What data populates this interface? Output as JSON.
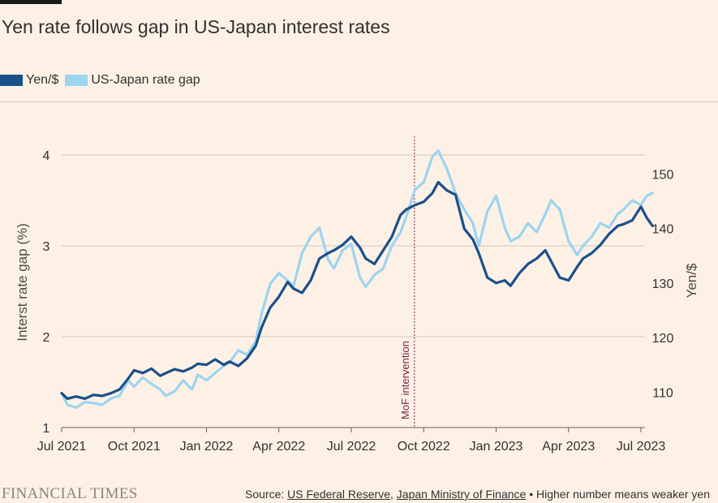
{
  "title": "Yen rate follows gap in US-Japan interest rates",
  "legend": [
    {
      "label": "Yen/$",
      "color": "#1b4f8a"
    },
    {
      "label": "US-Japan rate gap",
      "color": "#9dd4ef"
    }
  ],
  "footer": {
    "logo": "FINANCIAL TIMES",
    "source_prefix": "Source: ",
    "source_1": "US Federal Reserve",
    "source_sep": ", ",
    "source_2": "Japan Ministry of Finance",
    "note": " • Higher number means weaker yen"
  },
  "chart_data": {
    "type": "line",
    "title": "Yen rate follows gap in US-Japan interest rates",
    "x_ticks": [
      "Jul 2021",
      "Oct 2021",
      "Jan 2022",
      "Apr 2022",
      "Jul 2022",
      "Oct 2022",
      "Jan 2023",
      "Apr 2023",
      "Jul 2023"
    ],
    "y_left": {
      "label": "Interst rate gap (%)",
      "range": [
        1,
        4
      ],
      "ticks": [
        "1",
        "2",
        "3",
        "4"
      ]
    },
    "y_right": {
      "label": "Yen/$",
      "range": [
        103.5,
        153.5
      ],
      "ticks": [
        "110",
        "120",
        "130",
        "140",
        "150"
      ]
    },
    "grid": true,
    "legend_position": "top-left",
    "annotation": {
      "label": "MoF intervention",
      "x": 2022.718
    },
    "series": [
      {
        "name": "Yen/$",
        "axis": "right",
        "color": "#1b4f8a",
        "x": [
          2021.5,
          2021.52,
          2021.55,
          2021.58,
          2021.61,
          2021.64,
          2021.67,
          2021.7,
          2021.73,
          2021.75,
          2021.78,
          2021.81,
          2021.84,
          2021.86,
          2021.89,
          2021.92,
          2021.95,
          2021.97,
          2022.0,
          2022.03,
          2022.06,
          2022.08,
          2022.11,
          2022.14,
          2022.17,
          2022.19,
          2022.22,
          2022.25,
          2022.28,
          2022.3,
          2022.33,
          2022.36,
          2022.39,
          2022.42,
          2022.44,
          2022.47,
          2022.5,
          2022.53,
          2022.55,
          2022.58,
          2022.61,
          2022.64,
          2022.67,
          2022.69,
          2022.72,
          2022.75,
          2022.78,
          2022.8,
          2022.83,
          2022.86,
          2022.89,
          2022.92,
          2022.94,
          2022.97,
          2023.0,
          2023.03,
          2023.05,
          2023.08,
          2023.11,
          2023.14,
          2023.17,
          2023.19,
          2023.22,
          2023.25,
          2023.28,
          2023.3,
          2023.33,
          2023.36,
          2023.39,
          2023.42,
          2023.44,
          2023.47,
          2023.5,
          2023.52,
          2023.54
        ],
        "values": [
          109.8,
          108.8,
          109.2,
          108.8,
          109.5,
          109.3,
          109.8,
          110.5,
          112.5,
          114.0,
          113.5,
          114.3,
          113.0,
          113.5,
          114.2,
          113.8,
          114.5,
          115.2,
          115.0,
          116.0,
          115.0,
          115.6,
          114.8,
          116.2,
          118.5,
          121.8,
          125.5,
          127.5,
          130.2,
          129.0,
          128.2,
          130.5,
          134.5,
          135.5,
          136.0,
          137.0,
          138.5,
          136.5,
          134.5,
          133.5,
          136.0,
          138.5,
          142.5,
          143.5,
          144.3,
          144.9,
          146.5,
          148.5,
          147.0,
          146.2,
          140.0,
          138.0,
          135.5,
          131.0,
          130.0,
          130.5,
          129.5,
          131.8,
          133.5,
          134.5,
          136.0,
          134.0,
          131.0,
          130.5,
          133.0,
          134.5,
          135.5,
          137.0,
          139.0,
          140.5,
          140.8,
          141.5,
          144.0,
          142.0,
          140.5
        ]
      },
      {
        "name": "US-Japan rate gap",
        "axis": "left",
        "color": "#9dd4ef",
        "x": [
          2021.5,
          2021.52,
          2021.55,
          2021.58,
          2021.61,
          2021.64,
          2021.67,
          2021.7,
          2021.73,
          2021.75,
          2021.78,
          2021.81,
          2021.84,
          2021.86,
          2021.89,
          2021.92,
          2021.95,
          2021.97,
          2022.0,
          2022.03,
          2022.06,
          2022.08,
          2022.11,
          2022.14,
          2022.17,
          2022.19,
          2022.22,
          2022.25,
          2022.28,
          2022.3,
          2022.33,
          2022.36,
          2022.39,
          2022.42,
          2022.44,
          2022.47,
          2022.5,
          2022.53,
          2022.55,
          2022.58,
          2022.61,
          2022.64,
          2022.67,
          2022.69,
          2022.72,
          2022.75,
          2022.78,
          2022.8,
          2022.83,
          2022.86,
          2022.89,
          2022.92,
          2022.94,
          2022.97,
          2023.0,
          2023.03,
          2023.05,
          2023.08,
          2023.11,
          2023.14,
          2023.17,
          2023.19,
          2023.22,
          2023.25,
          2023.28,
          2023.3,
          2023.33,
          2023.36,
          2023.39,
          2023.42,
          2023.44,
          2023.47,
          2023.5,
          2023.52,
          2023.54
        ],
        "values": [
          1.38,
          1.25,
          1.22,
          1.28,
          1.27,
          1.25,
          1.32,
          1.35,
          1.52,
          1.45,
          1.55,
          1.48,
          1.42,
          1.35,
          1.4,
          1.52,
          1.42,
          1.58,
          1.52,
          1.6,
          1.68,
          1.72,
          1.85,
          1.8,
          1.95,
          2.25,
          2.58,
          2.7,
          2.62,
          2.55,
          2.92,
          3.1,
          3.2,
          2.85,
          2.75,
          2.95,
          3.02,
          2.65,
          2.55,
          2.68,
          2.75,
          3.0,
          3.15,
          3.32,
          3.62,
          3.7,
          3.98,
          4.05,
          3.85,
          3.58,
          3.4,
          3.25,
          3.0,
          3.38,
          3.55,
          3.2,
          3.05,
          3.1,
          3.25,
          3.15,
          3.35,
          3.5,
          3.4,
          3.05,
          2.9,
          3.0,
          3.1,
          3.25,
          3.2,
          3.35,
          3.4,
          3.5,
          3.45,
          3.55,
          3.58
        ]
      }
    ]
  }
}
